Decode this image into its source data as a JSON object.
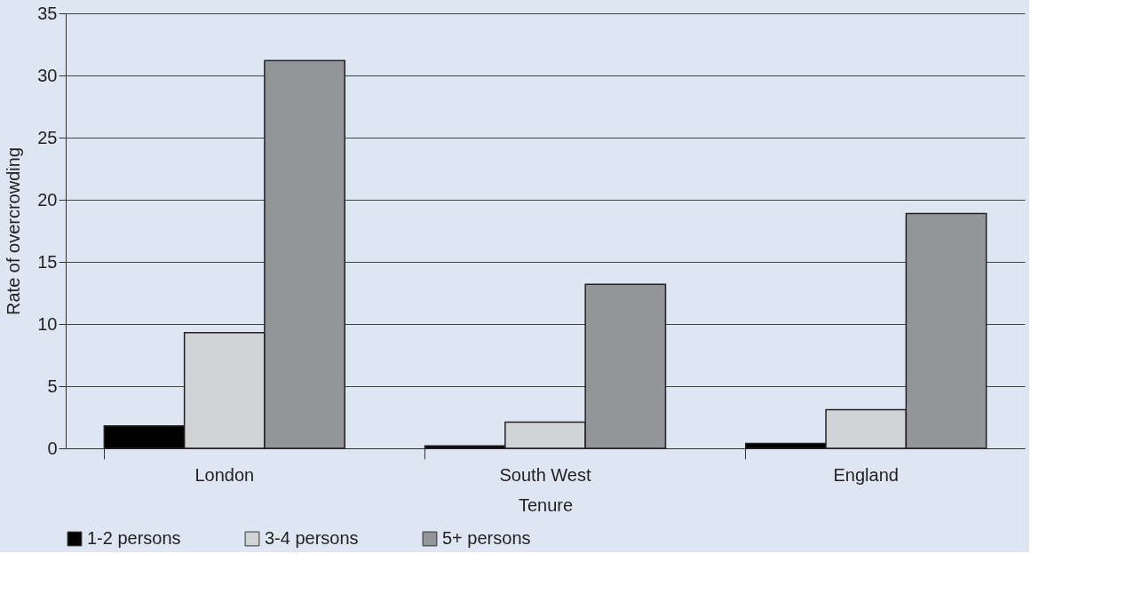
{
  "chart_data": {
    "type": "bar",
    "xlabel": "Tenure",
    "ylabel": "Rate of overcrowding",
    "categories": [
      "London",
      "South West",
      "England"
    ],
    "series": [
      {
        "name": "1-2 persons",
        "color": "#000000",
        "values": [
          1.8,
          0.2,
          0.4
        ]
      },
      {
        "name": "3-4 persons",
        "color": "#d2d3d5",
        "values": [
          9.3,
          2.1,
          3.1
        ]
      },
      {
        "name": "5+ persons",
        "color": "#939598",
        "values": [
          31.2,
          13.2,
          18.9
        ]
      }
    ],
    "ylim": [
      0,
      35
    ],
    "yticks": [
      0,
      5,
      10,
      15,
      20,
      25,
      30,
      35
    ],
    "grid": "y",
    "legend": "bottom"
  }
}
